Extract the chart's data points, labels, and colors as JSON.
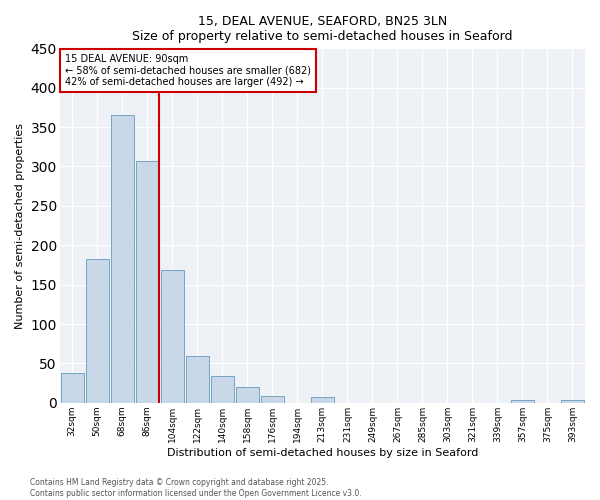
{
  "title1": "15, DEAL AVENUE, SEAFORD, BN25 3LN",
  "title2": "Size of property relative to semi-detached houses in Seaford",
  "xlabel": "Distribution of semi-detached houses by size in Seaford",
  "ylabel": "Number of semi-detached properties",
  "bar_labels": [
    "32sqm",
    "50sqm",
    "68sqm",
    "86sqm",
    "104sqm",
    "122sqm",
    "140sqm",
    "158sqm",
    "176sqm",
    "194sqm",
    "213sqm",
    "231sqm",
    "249sqm",
    "267sqm",
    "285sqm",
    "303sqm",
    "321sqm",
    "339sqm",
    "357sqm",
    "375sqm",
    "393sqm"
  ],
  "bar_values": [
    38,
    183,
    365,
    307,
    168,
    59,
    34,
    20,
    9,
    0,
    7,
    0,
    0,
    0,
    0,
    0,
    0,
    0,
    4,
    0,
    3
  ],
  "bar_color": "#c8d8e8",
  "bar_edge_color": "#6699bb",
  "vline_color": "#cc0000",
  "vline_index": 3,
  "property_size": "90sqm",
  "pct_smaller": 58,
  "n_smaller": 682,
  "pct_larger": 42,
  "n_larger": 492,
  "ann_edge_color": "#cc0000",
  "ylim": [
    0,
    450
  ],
  "yticks": [
    0,
    50,
    100,
    150,
    200,
    250,
    300,
    350,
    400,
    450
  ],
  "bg_color": "#eef2f7",
  "grid_color": "#ffffff",
  "footer1": "Contains HM Land Registry data © Crown copyright and database right 2025.",
  "footer2": "Contains public sector information licensed under the Open Government Licence v3.0."
}
